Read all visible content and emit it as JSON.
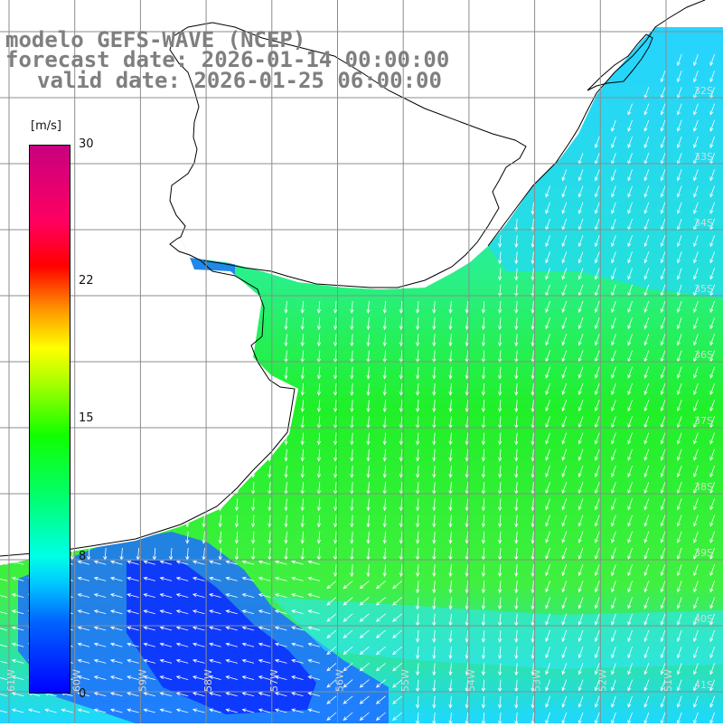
{
  "map": {
    "title": "modelo GEFS-WAVE (NCEP)",
    "forecast_date": "forecast date: 2026-01-14 00:00:00",
    "valid_date": "valid date: 2026-01-25 06:00:00",
    "variable": "wind speed and direction"
  },
  "colorbar": {
    "unit": "[m/s]",
    "labels": [
      "30",
      "22",
      "15",
      "8",
      "0"
    ],
    "colors": [
      "#0000ff",
      "#00c8ff",
      "#00ff80",
      "#10ff00",
      "#ffff00",
      "#ff0000",
      "#c80080"
    ]
  },
  "axes": {
    "lat_labels": [
      "32S",
      "33S",
      "34S",
      "35S",
      "36S",
      "37S",
      "38S",
      "39S",
      "40S",
      "41S"
    ],
    "lon_labels": [
      "61W",
      "60W",
      "59W",
      "58W",
      "57W",
      "56W",
      "55W",
      "54W",
      "53W",
      "52W",
      "51W"
    ]
  },
  "colors": {
    "land": "#ffffff",
    "coast": "#000000",
    "grid": "#8c8c8c",
    "title_text": "#7f7f7f"
  }
}
